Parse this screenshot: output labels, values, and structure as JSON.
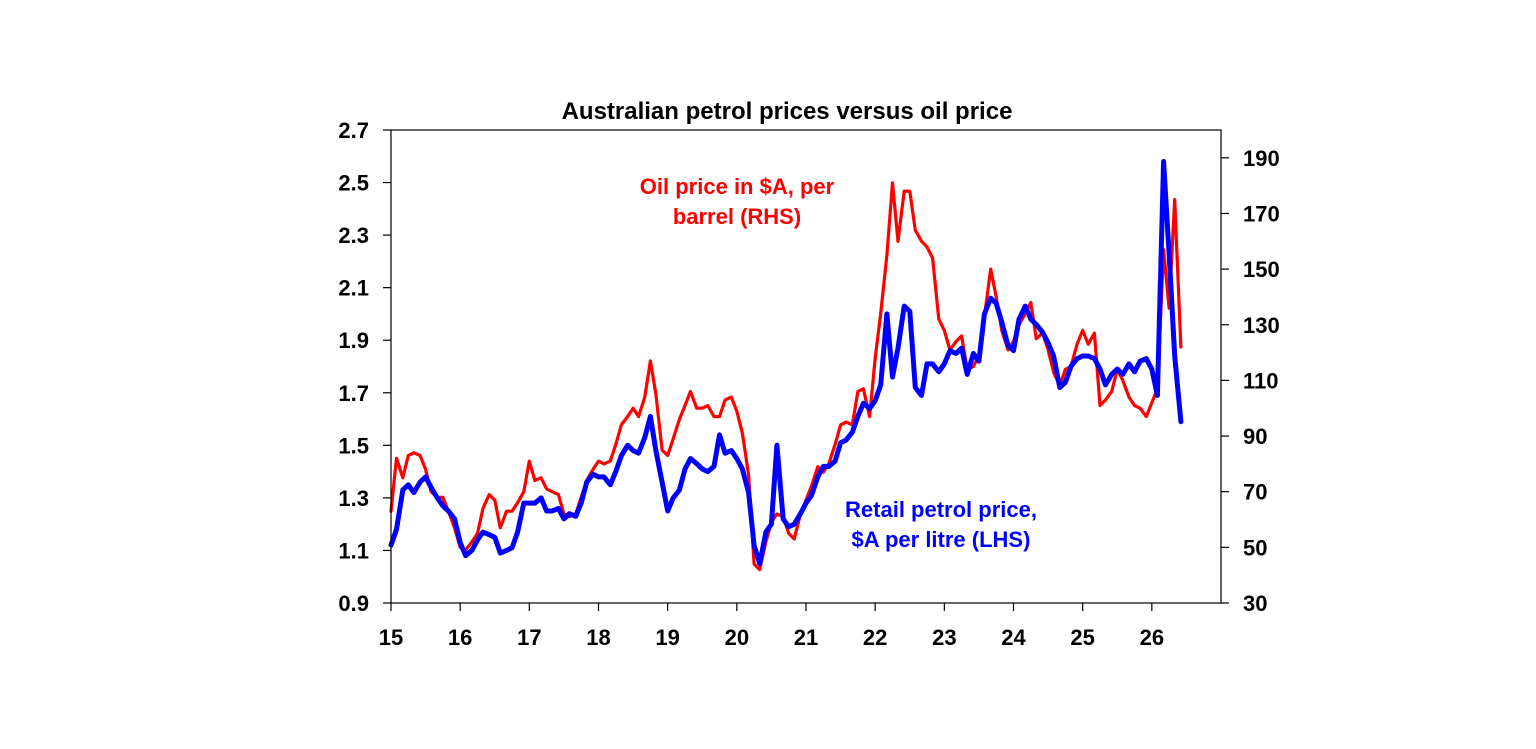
{
  "chart_data": {
    "type": "line",
    "title": "Australian petrol prices versus oil price",
    "xlabel": "",
    "ylabel": "",
    "x_axis": {
      "range": [
        2015,
        2027
      ],
      "tick_values": [
        2015,
        2016,
        2017,
        2018,
        2019,
        2020,
        2021,
        2022,
        2023,
        2024,
        2025,
        2026
      ],
      "tick_labels": [
        "15",
        "16",
        "17",
        "18",
        "19",
        "20",
        "21",
        "22",
        "23",
        "24",
        "25",
        "26"
      ]
    },
    "y_left": {
      "range": [
        0.9,
        2.7
      ],
      "ticks": [
        "0.9",
        "1.1",
        "1.3",
        "1.5",
        "1.7",
        "1.9",
        "2.1",
        "2.3",
        "2.5",
        "2.7"
      ]
    },
    "y_right": {
      "range": [
        30,
        200
      ],
      "ticks": [
        "30",
        "50",
        "70",
        "90",
        "110",
        "130",
        "150",
        "170",
        "190"
      ]
    },
    "grid": false,
    "legend": "none",
    "annotations": [
      {
        "lines": [
          "Oil price in $A, per",
          "barrel (RHS)"
        ],
        "color": "#ff0000",
        "position": "upper-left"
      },
      {
        "lines": [
          "Retail petrol price,",
          "$A per litre (LHS)"
        ],
        "color": "#0000ff",
        "position": "lower-center"
      }
    ],
    "series": [
      {
        "name": "Oil price in $A, per barrel (RHS)",
        "axis": "right",
        "color": "#ff0000",
        "points": [
          [
            2015.0,
            63
          ],
          [
            2015.08,
            82
          ],
          [
            2015.17,
            75
          ],
          [
            2015.25,
            83
          ],
          [
            2015.33,
            84
          ],
          [
            2015.42,
            83
          ],
          [
            2015.5,
            78
          ],
          [
            2015.58,
            70
          ],
          [
            2015.67,
            68
          ],
          [
            2015.75,
            68
          ],
          [
            2015.83,
            63
          ],
          [
            2015.92,
            57
          ],
          [
            2016.0,
            50
          ],
          [
            2016.08,
            49
          ],
          [
            2016.17,
            52
          ],
          [
            2016.25,
            55
          ],
          [
            2016.33,
            64
          ],
          [
            2016.42,
            69
          ],
          [
            2016.5,
            67
          ],
          [
            2016.58,
            57
          ],
          [
            2016.67,
            63
          ],
          [
            2016.75,
            63
          ],
          [
            2016.83,
            66
          ],
          [
            2016.92,
            70
          ],
          [
            2017.0,
            81
          ],
          [
            2017.08,
            74
          ],
          [
            2017.17,
            75
          ],
          [
            2017.25,
            71
          ],
          [
            2017.33,
            70
          ],
          [
            2017.42,
            69
          ],
          [
            2017.5,
            62
          ],
          [
            2017.58,
            61
          ],
          [
            2017.67,
            62
          ],
          [
            2017.75,
            68
          ],
          [
            2017.83,
            74
          ],
          [
            2017.92,
            78
          ],
          [
            2018.0,
            81
          ],
          [
            2018.08,
            80
          ],
          [
            2018.17,
            81
          ],
          [
            2018.25,
            87
          ],
          [
            2018.33,
            94
          ],
          [
            2018.42,
            97
          ],
          [
            2018.5,
            100
          ],
          [
            2018.58,
            97
          ],
          [
            2018.67,
            104
          ],
          [
            2018.75,
            117
          ],
          [
            2018.83,
            105
          ],
          [
            2018.92,
            85
          ],
          [
            2019.0,
            83
          ],
          [
            2019.08,
            89
          ],
          [
            2019.17,
            96
          ],
          [
            2019.25,
            101
          ],
          [
            2019.33,
            106
          ],
          [
            2019.42,
            100
          ],
          [
            2019.5,
            100
          ],
          [
            2019.58,
            101
          ],
          [
            2019.67,
            97
          ],
          [
            2019.75,
            97
          ],
          [
            2019.83,
            103
          ],
          [
            2019.92,
            104
          ],
          [
            2020.0,
            99
          ],
          [
            2020.08,
            91
          ],
          [
            2020.17,
            76
          ],
          [
            2020.25,
            44
          ],
          [
            2020.33,
            42
          ],
          [
            2020.42,
            52
          ],
          [
            2020.5,
            59
          ],
          [
            2020.58,
            62
          ],
          [
            2020.67,
            61
          ],
          [
            2020.75,
            55
          ],
          [
            2020.83,
            53
          ],
          [
            2020.92,
            62
          ],
          [
            2021.0,
            67
          ],
          [
            2021.08,
            72
          ],
          [
            2021.17,
            79
          ],
          [
            2021.25,
            77
          ],
          [
            2021.33,
            80
          ],
          [
            2021.42,
            87
          ],
          [
            2021.5,
            94
          ],
          [
            2021.58,
            95
          ],
          [
            2021.67,
            94
          ],
          [
            2021.75,
            106
          ],
          [
            2021.83,
            107
          ],
          [
            2021.92,
            97
          ],
          [
            2022.0,
            118
          ],
          [
            2022.08,
            134
          ],
          [
            2022.17,
            155
          ],
          [
            2022.25,
            181
          ],
          [
            2022.33,
            160
          ],
          [
            2022.42,
            178
          ],
          [
            2022.5,
            178
          ],
          [
            2022.58,
            164
          ],
          [
            2022.67,
            160
          ],
          [
            2022.75,
            158
          ],
          [
            2022.83,
            154
          ],
          [
            2022.92,
            132
          ],
          [
            2023.0,
            128
          ],
          [
            2023.08,
            121
          ],
          [
            2023.17,
            124
          ],
          [
            2023.25,
            126
          ],
          [
            2023.33,
            114
          ],
          [
            2023.42,
            115
          ],
          [
            2023.5,
            119
          ],
          [
            2023.58,
            133
          ],
          [
            2023.67,
            150
          ],
          [
            2023.75,
            140
          ],
          [
            2023.83,
            128
          ],
          [
            2023.92,
            121
          ],
          [
            2024.0,
            124
          ],
          [
            2024.08,
            130
          ],
          [
            2024.17,
            134
          ],
          [
            2024.25,
            138
          ],
          [
            2024.33,
            125
          ],
          [
            2024.42,
            127
          ],
          [
            2024.5,
            121
          ],
          [
            2024.58,
            113
          ],
          [
            2024.67,
            108
          ],
          [
            2024.75,
            114
          ],
          [
            2024.83,
            115
          ],
          [
            2024.92,
            123
          ],
          [
            2025.0,
            128
          ],
          [
            2025.08,
            123
          ],
          [
            2025.17,
            127
          ],
          [
            2025.25,
            101
          ],
          [
            2025.33,
            103
          ],
          [
            2025.42,
            106
          ],
          [
            2025.5,
            114
          ],
          [
            2025.58,
            110
          ],
          [
            2025.67,
            104
          ],
          [
            2025.75,
            101
          ],
          [
            2025.83,
            100
          ],
          [
            2025.92,
            97
          ],
          [
            2026.0,
            102
          ],
          [
            2026.08,
            107
          ],
          [
            2026.17,
            157
          ],
          [
            2026.25,
            136
          ],
          [
            2026.33,
            175
          ],
          [
            2026.42,
            122
          ]
        ]
      },
      {
        "name": "Retail petrol price, $A per litre (LHS)",
        "axis": "left",
        "color": "#0000ff",
        "points": [
          [
            2015.0,
            1.12
          ],
          [
            2015.08,
            1.18
          ],
          [
            2015.17,
            1.33
          ],
          [
            2015.25,
            1.35
          ],
          [
            2015.33,
            1.32
          ],
          [
            2015.42,
            1.36
          ],
          [
            2015.5,
            1.38
          ],
          [
            2015.58,
            1.34
          ],
          [
            2015.67,
            1.3
          ],
          [
            2015.75,
            1.27
          ],
          [
            2015.83,
            1.25
          ],
          [
            2015.92,
            1.22
          ],
          [
            2016.0,
            1.13
          ],
          [
            2016.08,
            1.08
          ],
          [
            2016.17,
            1.1
          ],
          [
            2016.25,
            1.14
          ],
          [
            2016.33,
            1.17
          ],
          [
            2016.42,
            1.16
          ],
          [
            2016.5,
            1.15
          ],
          [
            2016.58,
            1.09
          ],
          [
            2016.67,
            1.1
          ],
          [
            2016.75,
            1.11
          ],
          [
            2016.83,
            1.17
          ],
          [
            2016.92,
            1.28
          ],
          [
            2017.0,
            1.28
          ],
          [
            2017.08,
            1.28
          ],
          [
            2017.17,
            1.3
          ],
          [
            2017.25,
            1.25
          ],
          [
            2017.33,
            1.25
          ],
          [
            2017.42,
            1.26
          ],
          [
            2017.5,
            1.22
          ],
          [
            2017.58,
            1.24
          ],
          [
            2017.67,
            1.23
          ],
          [
            2017.75,
            1.28
          ],
          [
            2017.83,
            1.36
          ],
          [
            2017.92,
            1.39
          ],
          [
            2018.0,
            1.38
          ],
          [
            2018.08,
            1.38
          ],
          [
            2018.17,
            1.35
          ],
          [
            2018.25,
            1.4
          ],
          [
            2018.33,
            1.46
          ],
          [
            2018.42,
            1.5
          ],
          [
            2018.5,
            1.48
          ],
          [
            2018.58,
            1.47
          ],
          [
            2018.67,
            1.53
          ],
          [
            2018.75,
            1.61
          ],
          [
            2018.83,
            1.48
          ],
          [
            2018.92,
            1.36
          ],
          [
            2019.0,
            1.25
          ],
          [
            2019.08,
            1.3
          ],
          [
            2019.17,
            1.33
          ],
          [
            2019.25,
            1.41
          ],
          [
            2019.33,
            1.45
          ],
          [
            2019.42,
            1.43
          ],
          [
            2019.5,
            1.41
          ],
          [
            2019.58,
            1.4
          ],
          [
            2019.67,
            1.42
          ],
          [
            2019.75,
            1.54
          ],
          [
            2019.83,
            1.47
          ],
          [
            2019.92,
            1.48
          ],
          [
            2020.0,
            1.45
          ],
          [
            2020.08,
            1.41
          ],
          [
            2020.17,
            1.32
          ],
          [
            2020.25,
            1.12
          ],
          [
            2020.33,
            1.05
          ],
          [
            2020.42,
            1.17
          ],
          [
            2020.5,
            1.2
          ],
          [
            2020.58,
            1.5
          ],
          [
            2020.67,
            1.22
          ],
          [
            2020.75,
            1.19
          ],
          [
            2020.83,
            1.2
          ],
          [
            2020.92,
            1.24
          ],
          [
            2021.0,
            1.28
          ],
          [
            2021.08,
            1.31
          ],
          [
            2021.17,
            1.38
          ],
          [
            2021.25,
            1.42
          ],
          [
            2021.33,
            1.42
          ],
          [
            2021.42,
            1.44
          ],
          [
            2021.5,
            1.51
          ],
          [
            2021.58,
            1.52
          ],
          [
            2021.67,
            1.55
          ],
          [
            2021.75,
            1.61
          ],
          [
            2021.83,
            1.66
          ],
          [
            2021.92,
            1.64
          ],
          [
            2022.0,
            1.67
          ],
          [
            2022.08,
            1.73
          ],
          [
            2022.17,
            2.0
          ],
          [
            2022.25,
            1.76
          ],
          [
            2022.33,
            1.87
          ],
          [
            2022.42,
            2.03
          ],
          [
            2022.5,
            2.01
          ],
          [
            2022.58,
            1.72
          ],
          [
            2022.67,
            1.69
          ],
          [
            2022.75,
            1.81
          ],
          [
            2022.83,
            1.81
          ],
          [
            2022.92,
            1.78
          ],
          [
            2023.0,
            1.81
          ],
          [
            2023.08,
            1.86
          ],
          [
            2023.17,
            1.85
          ],
          [
            2023.25,
            1.87
          ],
          [
            2023.33,
            1.77
          ],
          [
            2023.42,
            1.85
          ],
          [
            2023.5,
            1.82
          ],
          [
            2023.58,
            2.0
          ],
          [
            2023.67,
            2.06
          ],
          [
            2023.75,
            2.04
          ],
          [
            2023.83,
            1.97
          ],
          [
            2023.92,
            1.88
          ],
          [
            2024.0,
            1.86
          ],
          [
            2024.08,
            1.98
          ],
          [
            2024.17,
            2.03
          ],
          [
            2024.25,
            1.98
          ],
          [
            2024.33,
            1.96
          ],
          [
            2024.42,
            1.93
          ],
          [
            2024.5,
            1.89
          ],
          [
            2024.58,
            1.84
          ],
          [
            2024.67,
            1.72
          ],
          [
            2024.75,
            1.74
          ],
          [
            2024.83,
            1.8
          ],
          [
            2024.92,
            1.83
          ],
          [
            2025.0,
            1.84
          ],
          [
            2025.08,
            1.84
          ],
          [
            2025.17,
            1.83
          ],
          [
            2025.25,
            1.79
          ],
          [
            2025.33,
            1.73
          ],
          [
            2025.42,
            1.77
          ],
          [
            2025.5,
            1.79
          ],
          [
            2025.58,
            1.77
          ],
          [
            2025.67,
            1.81
          ],
          [
            2025.75,
            1.78
          ],
          [
            2025.83,
            1.82
          ],
          [
            2025.92,
            1.83
          ],
          [
            2026.0,
            1.79
          ],
          [
            2026.08,
            1.69
          ],
          [
            2026.17,
            2.58
          ],
          [
            2026.25,
            2.23
          ],
          [
            2026.33,
            1.84
          ],
          [
            2026.42,
            1.59
          ]
        ]
      }
    ]
  }
}
